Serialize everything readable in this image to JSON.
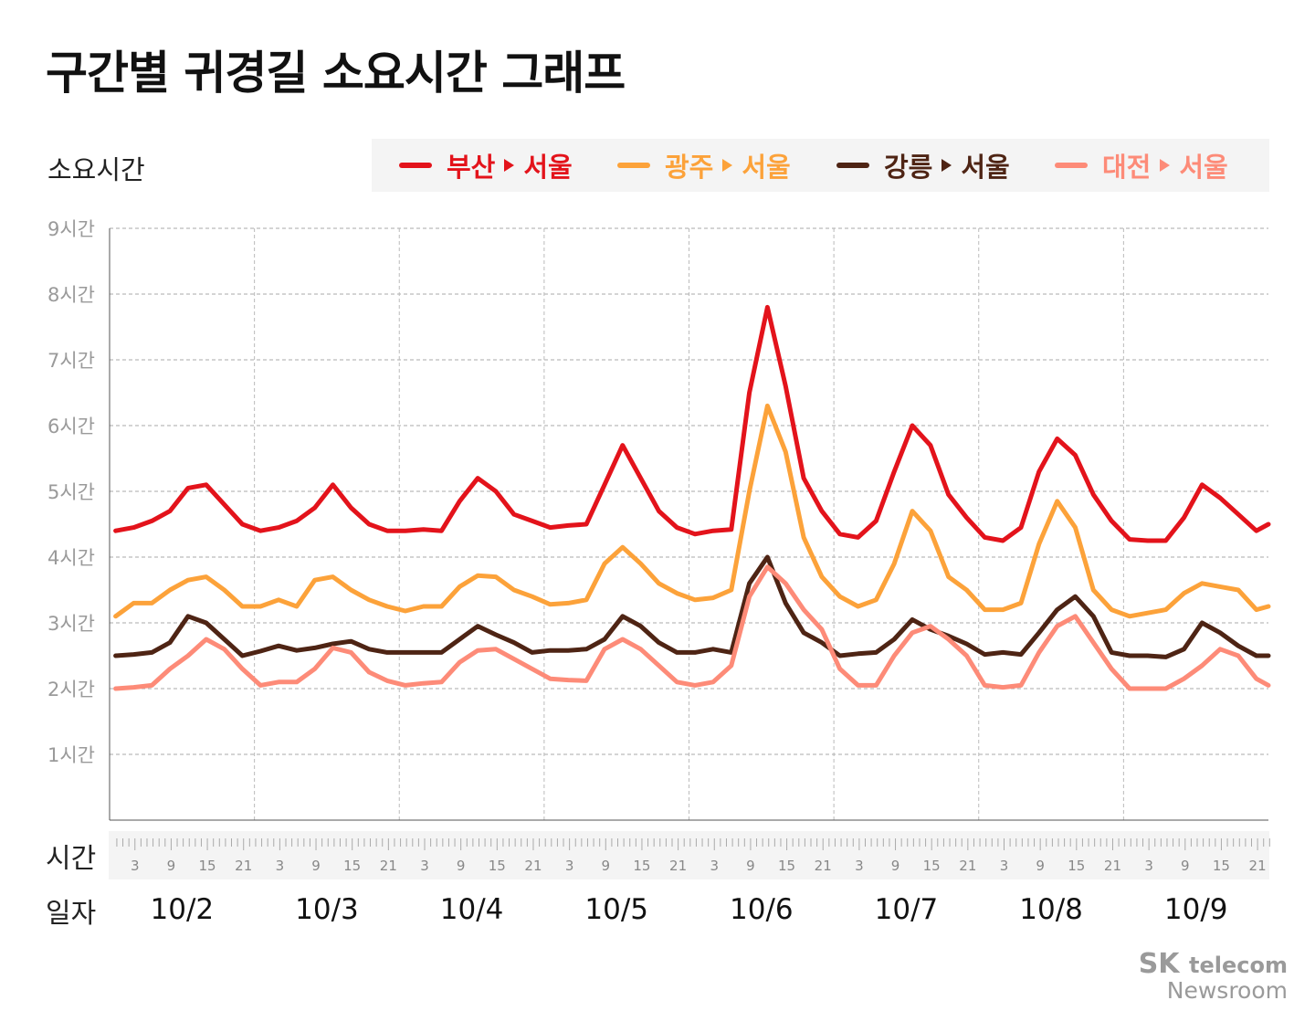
{
  "title": "구간별 귀경길 소요시간 그래프",
  "colors": {
    "busan": "#e3131b",
    "gwangju": "#fca23a",
    "gangneung": "#4e2414",
    "daejeon": "#fd8b78"
  },
  "chart_data": {
    "type": "line",
    "title": "구간별 귀경길 소요시간 그래프",
    "ylabel": "소요시간",
    "xlabel_hour": "시간",
    "xlabel_day": "일자",
    "ylim": [
      0,
      9
    ],
    "yticks": [
      {
        "v": 1,
        "label": "1시간"
      },
      {
        "v": 2,
        "label": "2시간"
      },
      {
        "v": 3,
        "label": "3시간"
      },
      {
        "v": 4,
        "label": "4시간"
      },
      {
        "v": 5,
        "label": "5시간"
      },
      {
        "v": 6,
        "label": "6시간"
      },
      {
        "v": 7,
        "label": "7시간"
      },
      {
        "v": 8,
        "label": "8시간"
      },
      {
        "v": 9,
        "label": "9시간"
      }
    ],
    "days": [
      "10/2",
      "10/3",
      "10/4",
      "10/5",
      "10/6",
      "10/7",
      "10/8",
      "10/9"
    ],
    "hour_ticks": [
      "3",
      "9",
      "15",
      "21"
    ],
    "grid": true,
    "legend_position": "top",
    "x": [
      "10/2 00",
      "10/2 03",
      "10/2 06",
      "10/2 09",
      "10/2 12",
      "10/2 15",
      "10/2 18",
      "10/2 21",
      "10/3 00",
      "10/3 03",
      "10/3 06",
      "10/3 09",
      "10/3 12",
      "10/3 15",
      "10/3 18",
      "10/3 21",
      "10/4 00",
      "10/4 03",
      "10/4 06",
      "10/4 09",
      "10/4 12",
      "10/4 15",
      "10/4 18",
      "10/4 21",
      "10/5 00",
      "10/5 03",
      "10/5 06",
      "10/5 09",
      "10/5 12",
      "10/5 15",
      "10/5 18",
      "10/5 21",
      "10/6 00",
      "10/6 03",
      "10/6 06",
      "10/6 09",
      "10/6 12",
      "10/6 15",
      "10/6 18",
      "10/6 21",
      "10/7 00",
      "10/7 03",
      "10/7 06",
      "10/7 09",
      "10/7 12",
      "10/7 15",
      "10/7 18",
      "10/7 21",
      "10/8 00",
      "10/8 03",
      "10/8 06",
      "10/8 09",
      "10/8 12",
      "10/8 15",
      "10/8 18",
      "10/8 21",
      "10/9 00",
      "10/9 03",
      "10/9 06",
      "10/9 09",
      "10/9 12",
      "10/9 15",
      "10/9 18",
      "10/9 21",
      "10/9 23"
    ],
    "series": [
      {
        "key": "busan",
        "name": "부산",
        "dest": "서울",
        "color": "#e3131b",
        "values": [
          4.4,
          4.45,
          4.55,
          4.7,
          5.05,
          5.1,
          4.8,
          4.5,
          4.4,
          4.45,
          4.55,
          4.75,
          5.1,
          4.75,
          4.5,
          4.4,
          4.4,
          4.42,
          4.4,
          4.85,
          5.2,
          5.0,
          4.65,
          4.55,
          4.45,
          4.48,
          4.5,
          5.1,
          5.7,
          5.2,
          4.7,
          4.45,
          4.35,
          4.4,
          4.42,
          6.5,
          7.8,
          6.6,
          5.2,
          4.7,
          4.35,
          4.3,
          4.55,
          5.3,
          6.0,
          5.7,
          4.95,
          4.6,
          4.3,
          4.25,
          4.45,
          5.3,
          5.8,
          5.55,
          4.95,
          4.55,
          4.27,
          4.25,
          4.25,
          4.6,
          5.1,
          4.9,
          4.65,
          4.4,
          4.5
        ]
      },
      {
        "key": "gwangju",
        "name": "광주",
        "dest": "서울",
        "color": "#fca23a",
        "values": [
          3.1,
          3.3,
          3.3,
          3.5,
          3.65,
          3.7,
          3.5,
          3.25,
          3.25,
          3.35,
          3.25,
          3.65,
          3.7,
          3.5,
          3.35,
          3.25,
          3.18,
          3.25,
          3.25,
          3.55,
          3.72,
          3.7,
          3.5,
          3.4,
          3.28,
          3.3,
          3.35,
          3.9,
          4.15,
          3.9,
          3.6,
          3.45,
          3.35,
          3.38,
          3.5,
          5.0,
          6.3,
          5.6,
          4.3,
          3.7,
          3.4,
          3.25,
          3.35,
          3.9,
          4.7,
          4.4,
          3.7,
          3.5,
          3.2,
          3.2,
          3.3,
          4.2,
          4.85,
          4.45,
          3.5,
          3.2,
          3.1,
          3.15,
          3.2,
          3.45,
          3.6,
          3.55,
          3.5,
          3.2,
          3.25
        ]
      },
      {
        "key": "gangneung",
        "name": "강릉",
        "dest": "서울",
        "color": "#4e2414",
        "values": [
          2.5,
          2.52,
          2.55,
          2.7,
          3.1,
          3.0,
          2.75,
          2.5,
          2.57,
          2.65,
          2.58,
          2.62,
          2.68,
          2.72,
          2.6,
          2.55,
          2.55,
          2.55,
          2.55,
          2.75,
          2.95,
          2.82,
          2.7,
          2.55,
          2.58,
          2.58,
          2.6,
          2.75,
          3.1,
          2.95,
          2.7,
          2.55,
          2.55,
          2.6,
          2.55,
          3.6,
          4.0,
          3.3,
          2.85,
          2.7,
          2.5,
          2.53,
          2.55,
          2.75,
          3.05,
          2.9,
          2.8,
          2.68,
          2.52,
          2.55,
          2.52,
          2.85,
          3.2,
          3.4,
          3.1,
          2.55,
          2.5,
          2.5,
          2.48,
          2.6,
          3.0,
          2.85,
          2.65,
          2.5,
          2.5
        ]
      },
      {
        "key": "daejeon",
        "name": "대전",
        "dest": "서울",
        "color": "#fd8b78",
        "values": [
          2.0,
          2.02,
          2.05,
          2.3,
          2.5,
          2.75,
          2.6,
          2.3,
          2.05,
          2.1,
          2.1,
          2.3,
          2.62,
          2.55,
          2.25,
          2.12,
          2.05,
          2.08,
          2.1,
          2.4,
          2.58,
          2.6,
          2.45,
          2.3,
          2.15,
          2.13,
          2.12,
          2.6,
          2.75,
          2.6,
          2.35,
          2.1,
          2.05,
          2.1,
          2.35,
          3.4,
          3.85,
          3.6,
          3.2,
          2.9,
          2.3,
          2.05,
          2.05,
          2.5,
          2.85,
          2.95,
          2.75,
          2.5,
          2.05,
          2.02,
          2.05,
          2.55,
          2.95,
          3.1,
          2.7,
          2.3,
          2.0,
          2.0,
          2.0,
          2.15,
          2.35,
          2.6,
          2.5,
          2.15,
          2.05
        ]
      }
    ]
  },
  "logo": {
    "brand": "SK",
    "sub": "telecom",
    "line2": "Newsroom"
  }
}
